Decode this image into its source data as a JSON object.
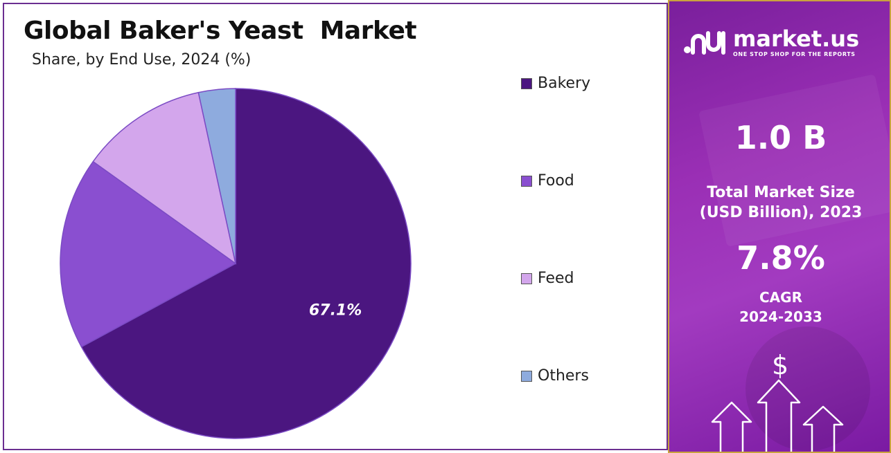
{
  "chart_data": {
    "type": "pie",
    "title": "Global Baker's Yeast  Market",
    "subtitle": "Share, by End Use, 2024 (%)",
    "categories": [
      "Bakery",
      "Food",
      "Feed",
      "Others"
    ],
    "values": [
      67.1,
      17.8,
      11.7,
      3.4
    ],
    "colors": [
      "#4b1680",
      "#8a4fd0",
      "#d3a6ec",
      "#8eabde"
    ],
    "data_labels": [
      "67.1%"
    ],
    "legend_position": "right"
  },
  "sidebar": {
    "brand_name": "market.us",
    "brand_tagline": "ONE STOP SHOP FOR THE REPORTS",
    "logo_icon": "market-us-logo-icon",
    "market_size_value": "1.0 B",
    "market_size_label_line1": "Total Market Size",
    "market_size_label_line2": "(USD Billion), 2023",
    "cagr_value": "7.8%",
    "cagr_label_line1": "CAGR",
    "cagr_label_line2": "2024-2033",
    "dollar_symbol": "$",
    "decor_icon": "growth-arrows-icon"
  }
}
